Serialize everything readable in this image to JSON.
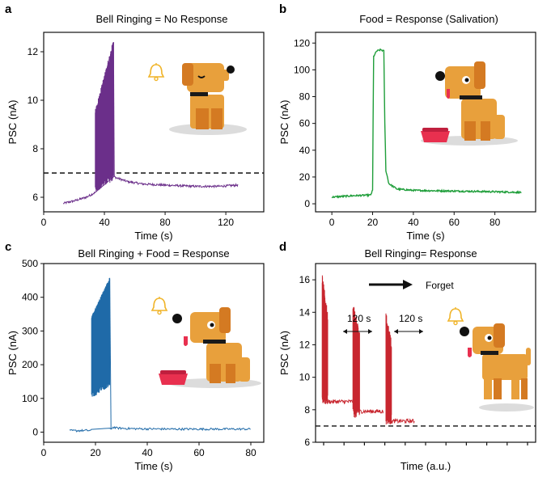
{
  "figure": {
    "width": 681,
    "height": 585
  },
  "colors": {
    "purple": "#6b2f8a",
    "green": "#1f9e3a",
    "blue": "#1f6aa8",
    "red": "#c8262f",
    "dog_body": "#e8a03c",
    "dog_dark": "#d47a22",
    "collar": "#1a1a1a",
    "bowl": "#e8304f",
    "bell": "#f0b429"
  },
  "chart_data": [
    {
      "panel": "a",
      "type": "line",
      "title": "Bell Ringing = No Response",
      "xlabel": "Time (s)",
      "ylabel": "PSC (nA)",
      "xlim": [
        0,
        145
      ],
      "ylim": [
        5.4,
        12.8
      ],
      "xticks": [
        0,
        40,
        80,
        120
      ],
      "yticks": [
        6,
        8,
        10,
        12
      ],
      "threshold": 7.0,
      "series": [
        {
          "color": "#6b2f8a",
          "baseline_points": [
            [
              13,
              5.75
            ],
            [
              20,
              5.85
            ],
            [
              28,
              6.0
            ],
            [
              34,
              6.2
            ],
            [
              38,
              6.5
            ],
            [
              45,
              6.9
            ],
            [
              48,
              6.8
            ],
            [
              55,
              6.65
            ],
            [
              65,
              6.55
            ],
            [
              80,
              6.5
            ],
            [
              100,
              6.45
            ],
            [
              115,
              6.45
            ],
            [
              128,
              6.5
            ]
          ],
          "spike_region": [
            34,
            46
          ],
          "spike_peak_start": 9.5,
          "spike_peak_end": 12.4,
          "spike_min": 6.2
        }
      ],
      "icons": [
        "bell-icon",
        "dog-icon"
      ]
    },
    {
      "panel": "b",
      "type": "line",
      "title": "Food = Response (Salivation)",
      "xlabel": "Time (s)",
      "ylabel": "PSC (nA)",
      "xlim": [
        -8,
        100
      ],
      "ylim": [
        -6,
        128
      ],
      "xticks": [
        0,
        20,
        40,
        60,
        80
      ],
      "yticks": [
        0,
        20,
        40,
        60,
        80,
        100,
        120
      ],
      "series": [
        {
          "color": "#1f9e3a",
          "points": [
            [
              0,
              5
            ],
            [
              10,
              6
            ],
            [
              19,
              6.5
            ],
            [
              20,
              10
            ],
            [
              20.5,
              110
            ],
            [
              22,
              114
            ],
            [
              24,
              115
            ],
            [
              25.5,
              114
            ],
            [
              26,
              60
            ],
            [
              26.5,
              25
            ],
            [
              28,
              15
            ],
            [
              32,
              11
            ],
            [
              40,
              10
            ],
            [
              60,
              9.5
            ],
            [
              80,
              9
            ],
            [
              93,
              8.5
            ]
          ]
        }
      ],
      "icons": [
        "dog-icon",
        "food-bowl-icon"
      ]
    },
    {
      "panel": "c",
      "type": "line",
      "title": "Bell Ringing + Food = Response",
      "xlabel": "Time (s)",
      "ylabel": "PSC (nA)",
      "xlim": [
        0,
        85
      ],
      "ylim": [
        -30,
        500
      ],
      "xticks": [
        0,
        20,
        40,
        60,
        80
      ],
      "yticks": [
        0,
        100,
        200,
        300,
        400,
        500
      ],
      "series": [
        {
          "color": "#1f6aa8",
          "baseline_points": [
            [
              10,
              4
            ],
            [
              18,
              5
            ],
            [
              26,
              10
            ],
            [
              27,
              15
            ],
            [
              28,
              12
            ],
            [
              35,
              10
            ],
            [
              50,
              9
            ],
            [
              65,
              9
            ],
            [
              80,
              9
            ]
          ],
          "spike_region": [
            18.5,
            25.5
          ],
          "spike_peak_start": 340,
          "spike_peak_end": 455,
          "spike_min": 100
        }
      ],
      "icons": [
        "bell-icon",
        "dog-icon",
        "food-bowl-icon"
      ]
    },
    {
      "panel": "d",
      "type": "line",
      "title": "Bell Ringing= Response",
      "xlabel": "Time (a.u.)",
      "ylabel": "PSC (nA)",
      "xlim": [
        0,
        10
      ],
      "ylim": [
        6,
        17
      ],
      "yticks": [
        6,
        8,
        10,
        12,
        14,
        16
      ],
      "xtick_count": 11,
      "threshold": 7.0,
      "forget_label": "Forget",
      "interval_labels": [
        "120 s",
        "120 s"
      ],
      "series": [
        {
          "color": "#c8262f",
          "bursts": [
            {
              "x_start": 0.3,
              "x_end": 0.55,
              "peak": 16.1,
              "low": 8.3,
              "tail_end": 1.7,
              "tail_level": 8.5
            },
            {
              "x_start": 1.7,
              "x_end": 2.0,
              "peak": 14.4,
              "low": 7.5,
              "tail_end": 3.1,
              "tail_level": 7.9
            },
            {
              "x_start": 3.2,
              "x_end": 3.45,
              "peak": 13.7,
              "low": 7.1,
              "tail_end": 4.5,
              "tail_level": 7.3
            }
          ]
        }
      ],
      "icons": [
        "bell-icon",
        "dog-icon"
      ]
    }
  ]
}
